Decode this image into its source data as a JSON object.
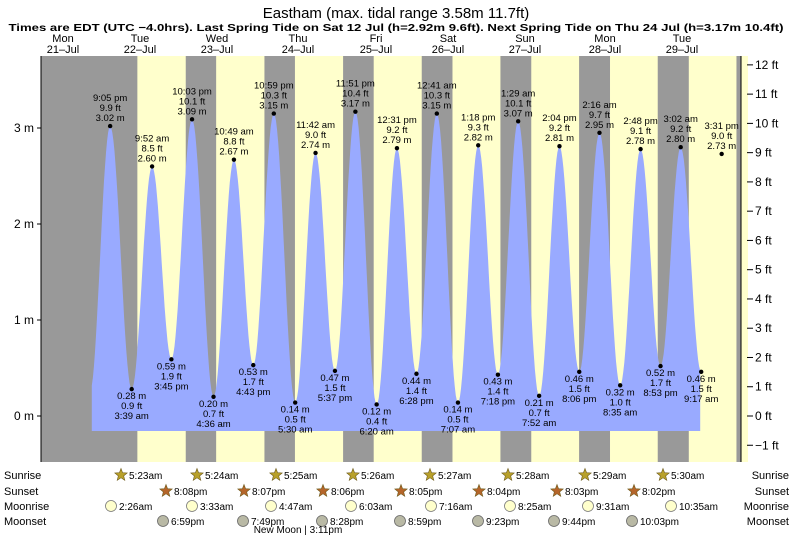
{
  "header": {
    "title": "Eastham (max. tidal range 3.58m 11.7ft)",
    "subtitle": "Times are EDT (UTC −4.0hrs). Last Spring Tide on Sat 12 Jul (h=2.92m 9.6ft). Next Spring Tide on Thu 24 Jul (h=3.17m 10.4ft)"
  },
  "days": [
    {
      "dow": "Mon",
      "date": "21–Jul"
    },
    {
      "dow": "Tue",
      "date": "22–Jul"
    },
    {
      "dow": "Wed",
      "date": "23–Jul"
    },
    {
      "dow": "Thu",
      "date": "24–Jul"
    },
    {
      "dow": "Fri",
      "date": "25–Jul"
    },
    {
      "dow": "Sat",
      "date": "26–Jul"
    },
    {
      "dow": "Sun",
      "date": "27–Jul"
    },
    {
      "dow": "Mon",
      "date": "28–Jul"
    },
    {
      "dow": "Tue",
      "date": "29–Jul"
    }
  ],
  "colors": {
    "night": "#999999",
    "day": "#ffffcc",
    "water": "#99aaff",
    "label_red": "#cc0000",
    "sun": "#b8a02a",
    "sunset": "#b5652a",
    "moonrise": "#ffffcc",
    "moonset": "#b9b9a5"
  },
  "chart_data": {
    "type": "area",
    "title": "Eastham (max. tidal range 3.58m 11.7ft)",
    "x_unit": "hours since Mon 21 Jul 00:00 EDT",
    "left_axis": {
      "unit": "m",
      "ticks": [
        {
          "v": 0,
          "label": "0 m"
        },
        {
          "v": 1,
          "label": "1 m"
        },
        {
          "v": 2,
          "label": "2 m"
        },
        {
          "v": 3,
          "label": "3 m"
        }
      ],
      "ylim": [
        -0.35,
        3.85
      ]
    },
    "right_axis": {
      "unit": "ft",
      "ticks": [
        "−1 ft",
        "0 ft",
        "1 ft",
        "2 ft",
        "3 ft",
        "4 ft",
        "5 ft",
        "6 ft",
        "7 ft",
        "8 ft",
        "9 ft",
        "10 ft",
        "11 ft",
        "12 ft"
      ]
    },
    "tides": [
      {
        "type": "high",
        "time": "9:05 pm",
        "ft": "9.9 ft",
        "m": "3.02 m",
        "h": 21.08,
        "v": 3.02
      },
      {
        "type": "low",
        "time": "3:39 am",
        "ft": "0.9 ft",
        "m": "0.28 m",
        "h": 27.65,
        "v": 0.28
      },
      {
        "type": "high",
        "time": "9:52 am",
        "ft": "8.5 ft",
        "m": "2.60 m",
        "h": 33.87,
        "v": 2.6
      },
      {
        "type": "low",
        "time": "3:45 pm",
        "ft": "1.9 ft",
        "m": "0.59 m",
        "h": 39.75,
        "v": 0.59
      },
      {
        "type": "high",
        "time": "10:03 pm",
        "ft": "10.1 ft",
        "m": "3.09 m",
        "h": 46.05,
        "v": 3.09
      },
      {
        "type": "low",
        "time": "4:36 am",
        "ft": "0.7 ft",
        "m": "0.20 m",
        "h": 52.6,
        "v": 0.2
      },
      {
        "type": "high",
        "time": "10:49 am",
        "ft": "8.8 ft",
        "m": "2.67 m",
        "h": 58.82,
        "v": 2.67
      },
      {
        "type": "low",
        "time": "4:43 pm",
        "ft": "1.7 ft",
        "m": "0.53 m",
        "h": 64.72,
        "v": 0.53
      },
      {
        "type": "high",
        "time": "10:59 pm",
        "ft": "10.3 ft",
        "m": "3.15 m",
        "h": 70.98,
        "v": 3.15
      },
      {
        "type": "low",
        "time": "5:30 am",
        "ft": "0.5 ft",
        "m": "0.14 m",
        "h": 77.5,
        "v": 0.14
      },
      {
        "type": "high",
        "time": "11:42 am",
        "ft": "9.0 ft",
        "m": "2.74 m",
        "h": 83.7,
        "v": 2.74
      },
      {
        "type": "low",
        "time": "5:37 pm",
        "ft": "1.5 ft",
        "m": "0.47 m",
        "h": 89.62,
        "v": 0.47
      },
      {
        "type": "high",
        "time": "11:51 pm",
        "ft": "10.4 ft",
        "m": "3.17 m",
        "h": 95.85,
        "v": 3.17
      },
      {
        "type": "low",
        "time": "6:20 am",
        "ft": "0.4 ft",
        "m": "0.12 m",
        "h": 102.33,
        "v": 0.12
      },
      {
        "type": "high",
        "time": "12:31 pm",
        "ft": "9.2 ft",
        "m": "2.79 m",
        "h": 108.52,
        "v": 2.79
      },
      {
        "type": "low",
        "time": "6:28 pm",
        "ft": "1.4 ft",
        "m": "0.44 m",
        "h": 114.47,
        "v": 0.44
      },
      {
        "type": "high",
        "time": "12:41 am",
        "ft": "10.3 ft",
        "m": "3.15 m",
        "h": 120.68,
        "v": 3.15
      },
      {
        "type": "low",
        "time": "7:07 am",
        "ft": "0.5 ft",
        "m": "0.14 m",
        "h": 127.12,
        "v": 0.14
      },
      {
        "type": "high",
        "time": "1:18 pm",
        "ft": "9.3 ft",
        "m": "2.82 m",
        "h": 133.3,
        "v": 2.82
      },
      {
        "type": "low",
        "time": "7:18 pm",
        "ft": "1.4 ft",
        "m": "0.43 m",
        "h": 139.3,
        "v": 0.43
      },
      {
        "type": "high",
        "time": "1:29 am",
        "ft": "10.1 ft",
        "m": "3.07 m",
        "h": 145.48,
        "v": 3.07
      },
      {
        "type": "low",
        "time": "7:52 am",
        "ft": "0.7 ft",
        "m": "0.21 m",
        "h": 151.87,
        "v": 0.21
      },
      {
        "type": "high",
        "time": "2:04 pm",
        "ft": "9.2 ft",
        "m": "2.81 m",
        "h": 158.07,
        "v": 2.81
      },
      {
        "type": "low",
        "time": "8:06 pm",
        "ft": "1.5 ft",
        "m": "0.46 m",
        "h": 164.1,
        "v": 0.46
      },
      {
        "type": "high",
        "time": "2:16 am",
        "ft": "9.7 ft",
        "m": "2.95 m",
        "h": 170.27,
        "v": 2.95
      },
      {
        "type": "low",
        "time": "8:35 am",
        "ft": "1.0 ft",
        "m": "0.32 m",
        "h": 176.58,
        "v": 0.32
      },
      {
        "type": "high",
        "time": "2:48 pm",
        "ft": "9.1 ft",
        "m": "2.78 m",
        "h": 182.8,
        "v": 2.78
      },
      {
        "type": "low",
        "time": "8:53 pm",
        "ft": "1.7 ft",
        "m": "0.52 m",
        "h": 188.88,
        "v": 0.52
      },
      {
        "type": "high",
        "time": "3:02 am",
        "ft": "9.2 ft",
        "m": "2.80 m",
        "h": 195.03,
        "v": 2.8
      },
      {
        "type": "low",
        "time": "9:17 am",
        "ft": "1.5 ft",
        "m": "0.46 m",
        "h": 201.28,
        "v": 0.46
      },
      {
        "type": "high",
        "time": "3:31 pm",
        "ft": "9.0 ft",
        "m": "2.73 m",
        "h": 207.52,
        "v": 2.73
      }
    ]
  },
  "rows": {
    "sunrise": {
      "label": "Sunrise",
      "times": [
        "5:23am",
        "5:24am",
        "5:25am",
        "5:26am",
        "5:27am",
        "5:28am",
        "5:29am",
        "5:30am"
      ]
    },
    "sunset": {
      "label": "Sunset",
      "times": [
        "8:08pm",
        "8:07pm",
        "8:06pm",
        "8:05pm",
        "8:04pm",
        "8:03pm",
        "8:02pm"
      ]
    },
    "moonrise": {
      "label": "Moonrise",
      "times": [
        "2:26am",
        "3:33am",
        "4:47am",
        "6:03am",
        "7:16am",
        "8:25am",
        "9:31am",
        "10:35am"
      ]
    },
    "moonset": {
      "label": "Moonset",
      "times": [
        "6:59pm",
        "7:49pm",
        "8:28pm",
        "8:59pm",
        "9:23pm",
        "9:44pm",
        "10:03pm"
      ]
    }
  },
  "moon_phase": "New Moon | 3:11pm"
}
